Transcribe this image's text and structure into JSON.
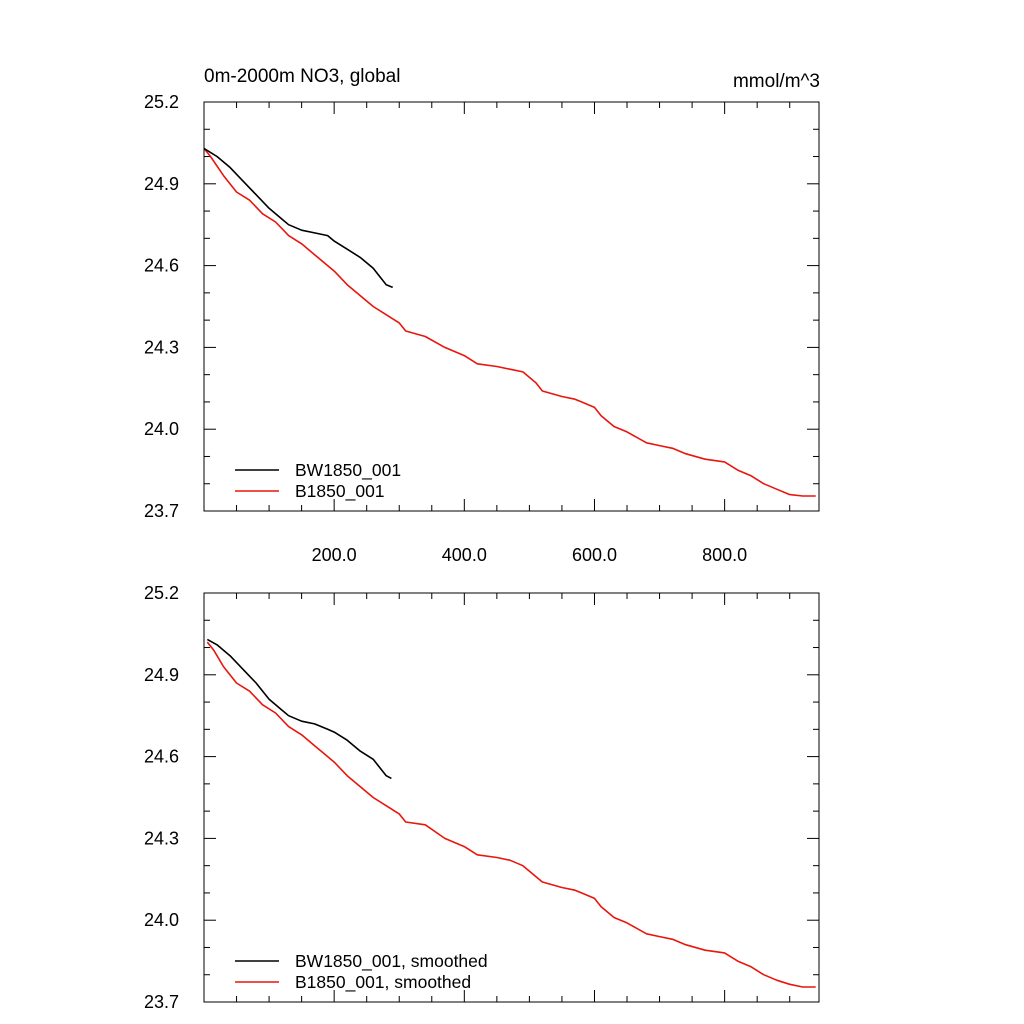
{
  "chart_data": [
    {
      "type": "line",
      "title": "0m-2000m NO3, global",
      "units": "mmol/m^3",
      "xlabel": "",
      "ylabel": "",
      "xlim": [
        0,
        945
      ],
      "ylim": [
        23.7,
        25.2
      ],
      "xticks": [
        200.0,
        400.0,
        600.0,
        800.0
      ],
      "xtick_labels": [
        "200.0",
        "400.0",
        "600.0",
        "800.0"
      ],
      "yticks": [
        23.7,
        24.0,
        24.3,
        24.6,
        24.9,
        25.2
      ],
      "ytick_labels": [
        "23.7",
        "24.0",
        "24.3",
        "24.6",
        "24.9",
        "25.2"
      ],
      "grid": false,
      "legend_position": "bottom-left",
      "series": [
        {
          "name": "BW1850_001",
          "color": "#000000",
          "x": [
            0,
            20,
            40,
            60,
            80,
            100,
            120,
            130,
            150,
            170,
            190,
            200,
            220,
            240,
            260,
            270,
            280,
            290
          ],
          "y": [
            25.03,
            25.0,
            24.96,
            24.91,
            24.86,
            24.81,
            24.77,
            24.75,
            24.73,
            24.72,
            24.71,
            24.69,
            24.66,
            24.63,
            24.59,
            24.56,
            24.53,
            24.52
          ]
        },
        {
          "name": "B1850_001",
          "color": "#e8160c",
          "x": [
            0,
            10,
            30,
            50,
            70,
            90,
            110,
            130,
            150,
            170,
            180,
            200,
            220,
            240,
            260,
            280,
            300,
            310,
            340,
            370,
            400,
            420,
            450,
            470,
            490,
            510,
            520,
            550,
            570,
            580,
            600,
            610,
            630,
            650,
            680,
            700,
            720,
            740,
            770,
            800,
            820,
            840,
            860,
            880,
            900,
            920,
            940
          ],
          "y": [
            25.03,
            25.0,
            24.93,
            24.87,
            24.84,
            24.79,
            24.76,
            24.71,
            24.68,
            24.64,
            24.62,
            24.58,
            24.53,
            24.49,
            24.45,
            24.42,
            24.39,
            24.36,
            24.34,
            24.3,
            24.27,
            24.24,
            24.23,
            24.22,
            24.21,
            24.17,
            24.14,
            24.12,
            24.11,
            24.1,
            24.08,
            24.05,
            24.01,
            23.99,
            23.95,
            23.94,
            23.93,
            23.91,
            23.89,
            23.88,
            23.85,
            23.83,
            23.8,
            23.78,
            23.76,
            23.755,
            23.755
          ]
        }
      ]
    },
    {
      "type": "line",
      "title": "",
      "xlabel": "",
      "ylabel": "",
      "xlim": [
        0,
        945
      ],
      "ylim": [
        23.7,
        25.2
      ],
      "xticks": [
        200.0,
        400.0,
        600.0,
        800.0
      ],
      "yticks": [
        23.7,
        24.0,
        24.3,
        24.6,
        24.9,
        25.2
      ],
      "ytick_labels": [
        "23.7",
        "24.0",
        "24.3",
        "24.6",
        "24.9",
        "25.2"
      ],
      "grid": false,
      "legend_position": "bottom-left",
      "series": [
        {
          "name": "BW1850_001, smoothed",
          "color": "#000000",
          "x": [
            5,
            20,
            40,
            60,
            80,
            100,
            120,
            130,
            150,
            170,
            190,
            200,
            220,
            240,
            260,
            270,
            280,
            288
          ],
          "y": [
            25.03,
            25.01,
            24.97,
            24.92,
            24.87,
            24.81,
            24.77,
            24.75,
            24.73,
            24.72,
            24.7,
            24.69,
            24.66,
            24.62,
            24.59,
            24.56,
            24.53,
            24.52
          ]
        },
        {
          "name": "B1850_001, smoothed",
          "color": "#e8160c",
          "x": [
            5,
            15,
            30,
            50,
            70,
            90,
            110,
            130,
            150,
            170,
            180,
            200,
            220,
            240,
            260,
            280,
            300,
            310,
            340,
            370,
            400,
            420,
            450,
            470,
            490,
            510,
            520,
            550,
            570,
            580,
            600,
            610,
            630,
            650,
            680,
            700,
            720,
            740,
            770,
            800,
            820,
            840,
            860,
            880,
            900,
            920,
            940
          ],
          "y": [
            25.02,
            24.99,
            24.93,
            24.87,
            24.84,
            24.79,
            24.76,
            24.71,
            24.68,
            24.64,
            24.62,
            24.58,
            24.53,
            24.49,
            24.45,
            24.42,
            24.39,
            24.36,
            24.35,
            24.3,
            24.27,
            24.24,
            24.23,
            24.22,
            24.2,
            24.16,
            24.14,
            24.12,
            24.11,
            24.1,
            24.08,
            24.05,
            24.01,
            23.99,
            23.95,
            23.94,
            23.93,
            23.91,
            23.89,
            23.88,
            23.85,
            23.83,
            23.8,
            23.78,
            23.765,
            23.755,
            23.755
          ]
        }
      ]
    }
  ]
}
